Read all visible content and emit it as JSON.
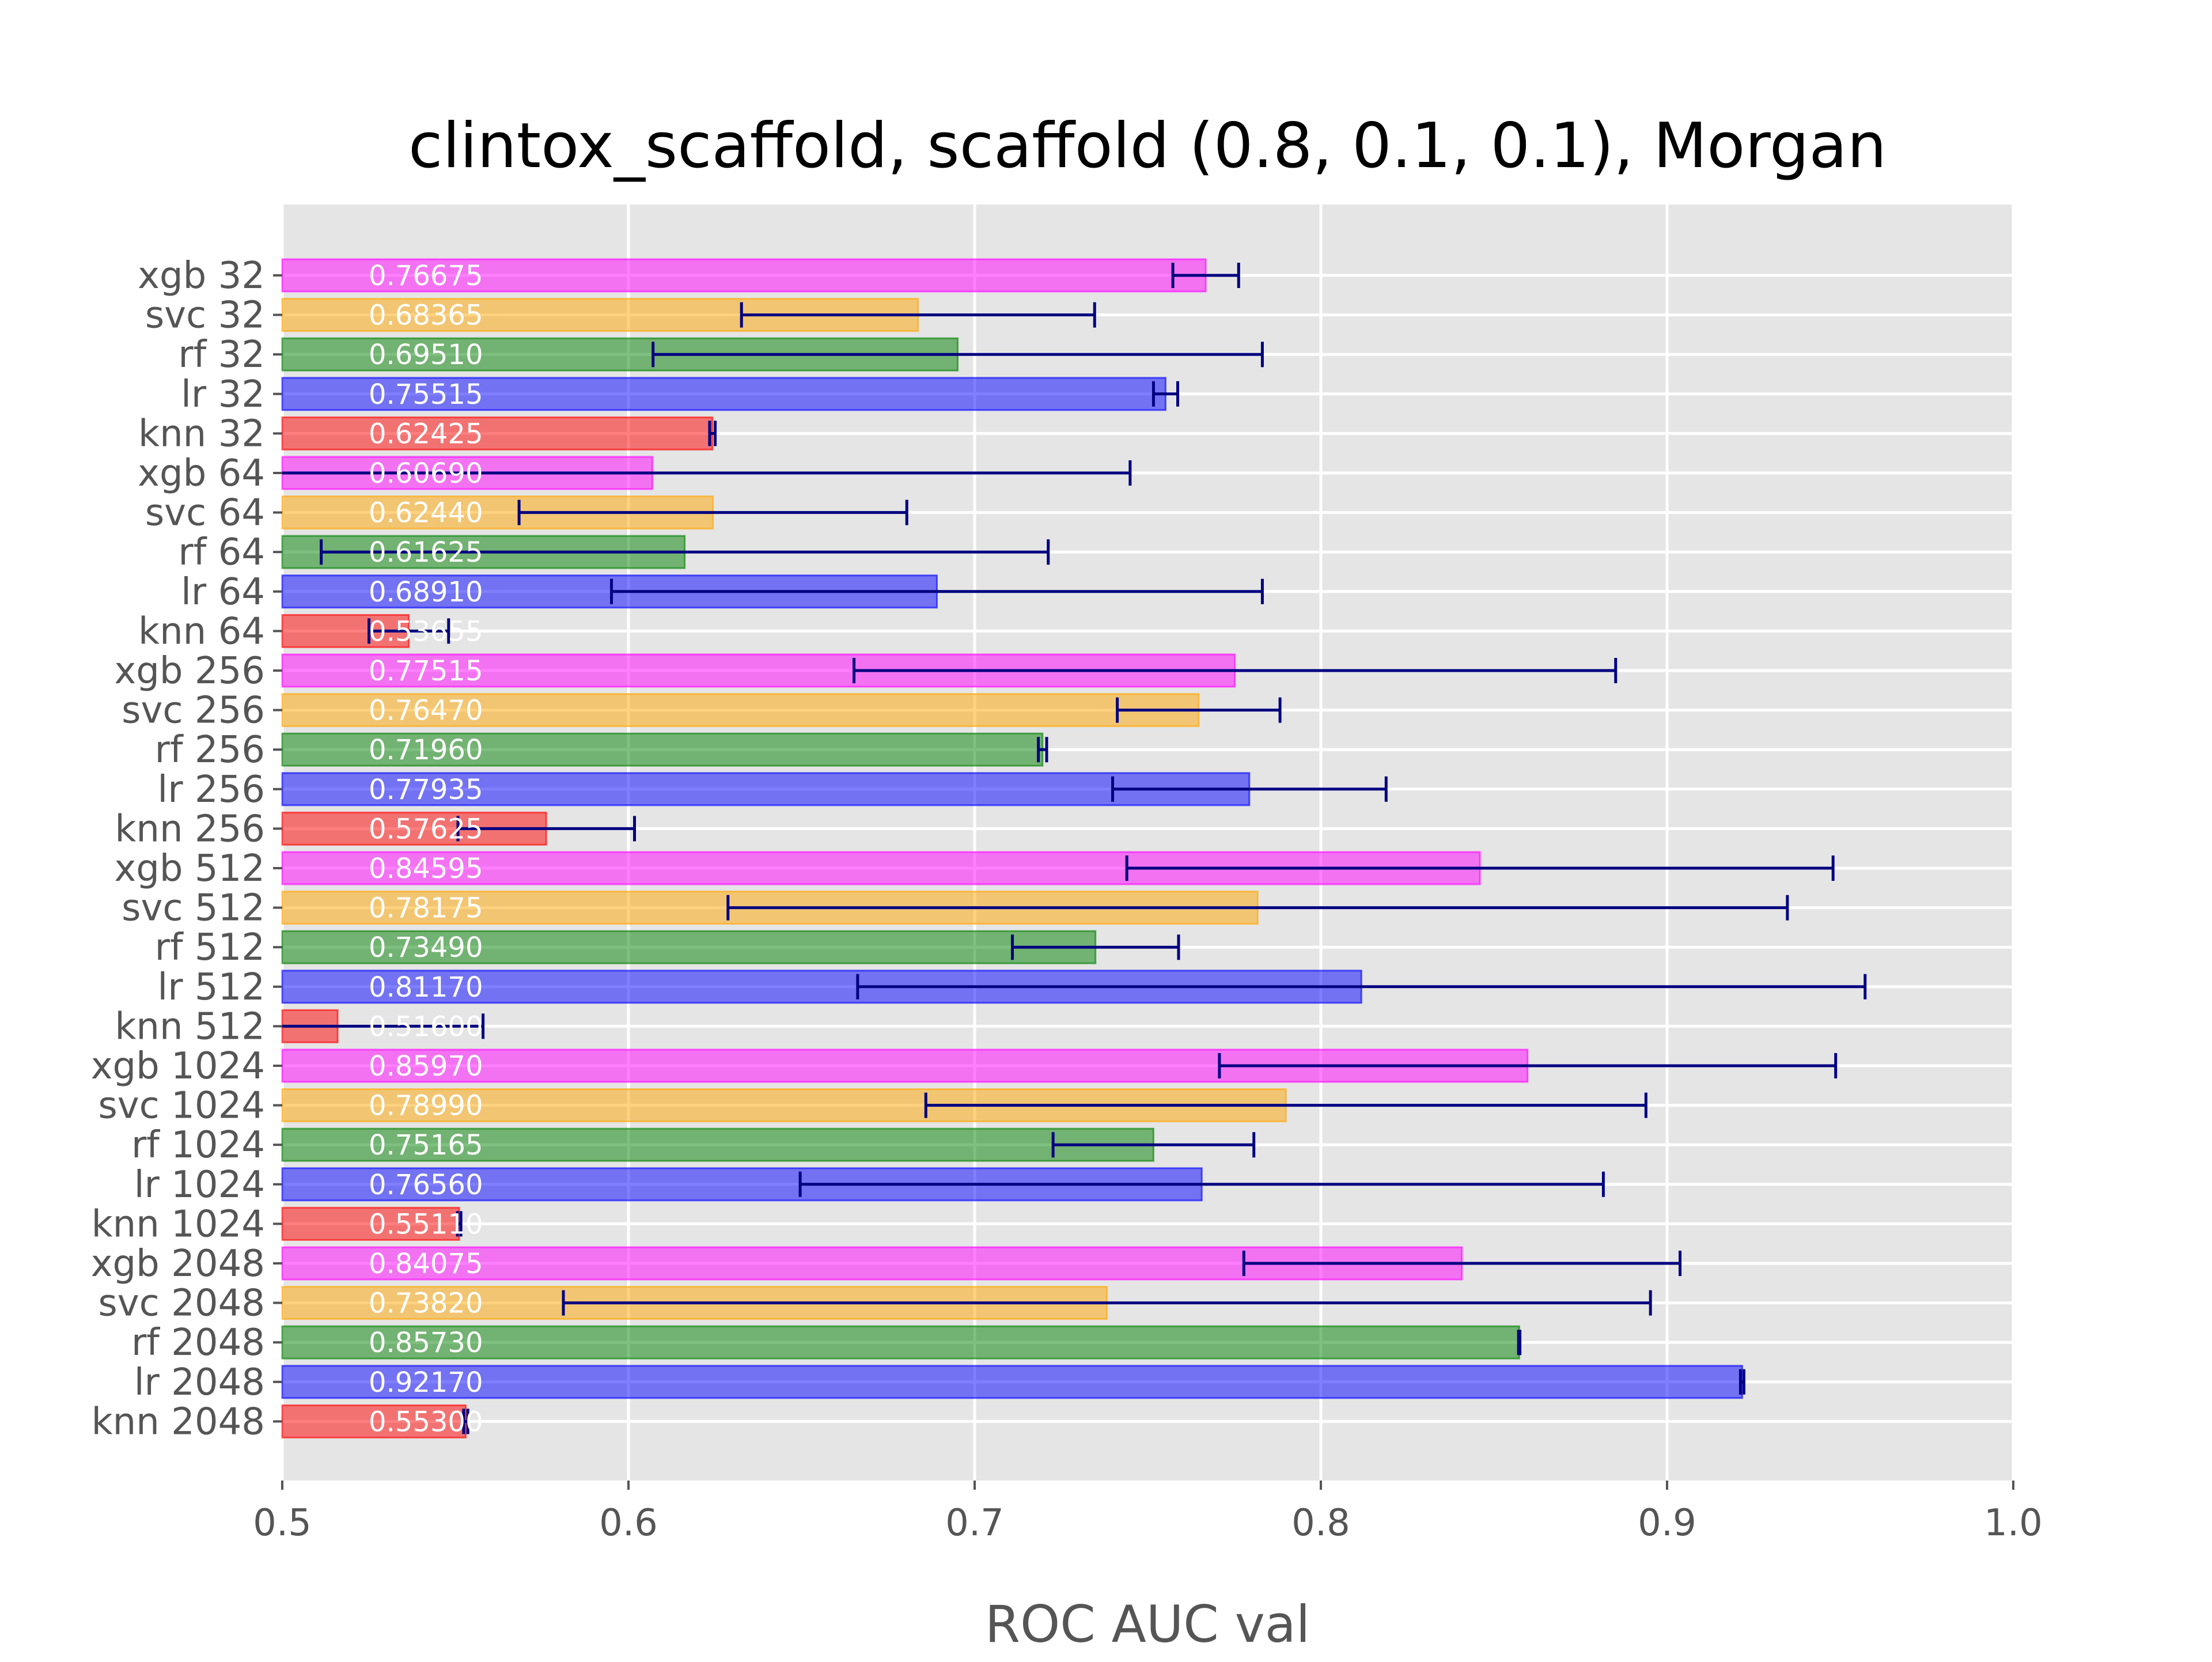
{
  "chart_data": {
    "type": "bar",
    "orientation": "horizontal",
    "title": "clintox_scaffold, scaffold (0.8, 0.1, 0.1), Morgan",
    "xlabel": "ROC AUC val",
    "ylabel": "",
    "xlim": [
      0.5,
      1.0
    ],
    "xticks": [
      "0.5",
      "0.6",
      "0.7",
      "0.8",
      "0.9",
      "1.0"
    ],
    "grid": true,
    "legend": "none",
    "colors": {
      "xgb": "#ff00ff",
      "svc": "#ffa500",
      "rf": "#008000",
      "lr": "#0000ff",
      "knn": "#ff0000",
      "errorbar": "#000080",
      "background": "#e5e5e5"
    },
    "categories": [
      "xgb 32",
      "svc 32",
      "rf 32",
      "lr 32",
      "knn 32",
      "xgb 64",
      "svc 64",
      "rf 64",
      "lr 64",
      "knn 64",
      "xgb 256",
      "svc 256",
      "rf 256",
      "lr 256",
      "knn 256",
      "xgb 512",
      "svc 512",
      "rf 512",
      "lr 512",
      "knn 512",
      "xgb 1024",
      "svc 1024",
      "rf 1024",
      "lr 1024",
      "knn 1024",
      "xgb 2048",
      "svc 2048",
      "rf 2048",
      "lr 2048",
      "knn 2048"
    ],
    "models": [
      "xgb",
      "svc",
      "rf",
      "lr",
      "knn",
      "xgb",
      "svc",
      "rf",
      "lr",
      "knn",
      "xgb",
      "svc",
      "rf",
      "lr",
      "knn",
      "xgb",
      "svc",
      "rf",
      "lr",
      "knn",
      "xgb",
      "svc",
      "rf",
      "lr",
      "knn",
      "xgb",
      "svc",
      "rf",
      "lr",
      "knn"
    ],
    "value_labels": [
      "0.76675",
      "0.68365",
      "0.69510",
      "0.75515",
      "0.62425",
      "0.60690",
      "0.62440",
      "0.61625",
      "0.68910",
      "0.53655",
      "0.77515",
      "0.76470",
      "0.71960",
      "0.77935",
      "0.57625",
      "0.84595",
      "0.78175",
      "0.73490",
      "0.81170",
      "0.51600",
      "0.85970",
      "0.78990",
      "0.75165",
      "0.76560",
      "0.55110",
      "0.84075",
      "0.73820",
      "0.85730",
      "0.92170",
      "0.55300"
    ],
    "values": [
      0.76675,
      0.68365,
      0.6951,
      0.75515,
      0.62425,
      0.6069,
      0.6244,
      0.61625,
      0.6891,
      0.53655,
      0.77515,
      0.7647,
      0.7196,
      0.77935,
      0.57625,
      0.84595,
      0.78175,
      0.7349,
      0.8117,
      0.516,
      0.8597,
      0.7899,
      0.75165,
      0.7656,
      0.5511,
      0.84075,
      0.7382,
      0.8573,
      0.9217,
      0.553
    ],
    "errors": [
      0.0095,
      0.051,
      0.088,
      0.0035,
      0.0008,
      0.138,
      0.056,
      0.105,
      0.094,
      0.0115,
      0.11,
      0.0235,
      0.0012,
      0.0395,
      0.0255,
      0.102,
      0.153,
      0.024,
      0.1455,
      0.042,
      0.089,
      0.104,
      0.029,
      0.116,
      0.0005,
      0.063,
      0.157,
      0.0002,
      0.0005,
      0.0006
    ]
  }
}
